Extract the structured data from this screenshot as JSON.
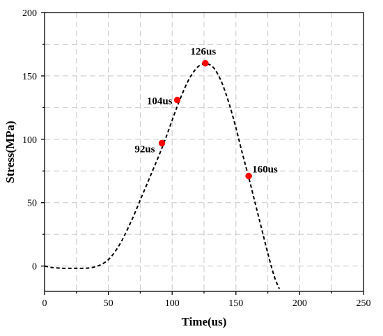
{
  "chart_data": {
    "type": "line",
    "title": "",
    "xlabel": "Time(us)",
    "ylabel": "Stress(MPa)",
    "xlim": [
      0,
      250
    ],
    "ylim": [
      -20,
      200
    ],
    "x_ticks": [
      0,
      50,
      100,
      150,
      200,
      250
    ],
    "y_ticks": [
      0,
      50,
      100,
      150,
      200
    ],
    "x_tick_labels": [
      "0",
      "50",
      "100",
      "150",
      "200",
      "250"
    ],
    "y_tick_labels": [
      "0",
      "50",
      "100",
      "150",
      "200"
    ],
    "grid": true,
    "series": [
      {
        "style": "dashed",
        "color": "#000000",
        "x": [
          0,
          5,
          10,
          15,
          20,
          25,
          30,
          35,
          40,
          45,
          50,
          55,
          60,
          65,
          70,
          75,
          80,
          85,
          90,
          95,
          100,
          104,
          108,
          112,
          116,
          120,
          124,
          126,
          128,
          132,
          136,
          140,
          145,
          150,
          155,
          160,
          165,
          170,
          175,
          180,
          184
        ],
        "y": [
          0,
          -1,
          -1.5,
          -1.8,
          -1.8,
          -1.8,
          -1.8,
          -1.5,
          -0.5,
          1.5,
          5,
          11,
          19,
          29,
          40,
          52,
          64,
          76,
          88,
          101,
          115,
          126,
          136,
          145,
          152,
          157,
          159.5,
          160,
          159.5,
          157,
          151,
          142,
          127,
          109,
          89,
          70,
          50,
          30,
          10,
          -8,
          -18
        ]
      }
    ],
    "points": [
      {
        "x": 92,
        "y": 97,
        "label": "92us"
      },
      {
        "x": 104,
        "y": 131,
        "label": "104us"
      },
      {
        "x": 126,
        "y": 160,
        "label": "126us"
      },
      {
        "x": 160,
        "y": 71,
        "label": "160us"
      }
    ],
    "marker_color": "#ff0000"
  }
}
